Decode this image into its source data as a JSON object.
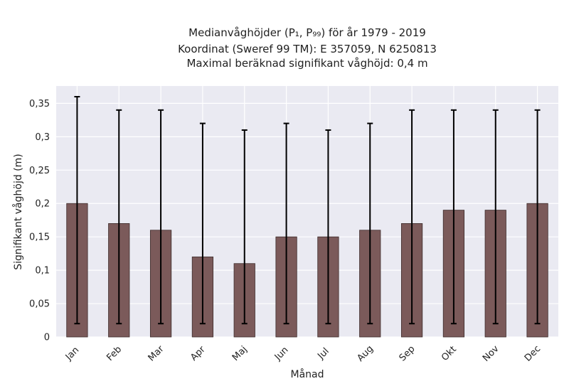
{
  "chart_data": {
    "type": "bar",
    "title_lines": [
      "Medianvåghöjder (P₁, P₉₉) för år 1979 - 2019",
      "Koordinat (Sweref 99 TM): E 357059, N 6250813",
      "Maximal beräknad signifikant våghöjd: 0,4 m"
    ],
    "xlabel": "Månad",
    "ylabel": "Signifikant våghöjd (m)",
    "categories": [
      "Jan",
      "Feb",
      "Mar",
      "Apr",
      "Maj",
      "Jun",
      "Jul",
      "Aug",
      "Sep",
      "Okt",
      "Nov",
      "Dec"
    ],
    "values": [
      0.2,
      0.17,
      0.16,
      0.12,
      0.11,
      0.15,
      0.15,
      0.16,
      0.17,
      0.19,
      0.19,
      0.2
    ],
    "p1": [
      0.02,
      0.02,
      0.02,
      0.02,
      0.02,
      0.02,
      0.02,
      0.02,
      0.02,
      0.02,
      0.02,
      0.02
    ],
    "p99": [
      0.36,
      0.34,
      0.34,
      0.32,
      0.31,
      0.32,
      0.31,
      0.32,
      0.34,
      0.34,
      0.34,
      0.34
    ],
    "ylim": [
      0,
      0.376
    ],
    "yticks": [
      0,
      0.05,
      0.1,
      0.15,
      0.2,
      0.25,
      0.3,
      0.35
    ],
    "ytick_labels": [
      "0",
      "0,05",
      "0,1",
      "0,15",
      "0,2",
      "0,25",
      "0,3",
      "0,35"
    ],
    "grid": true,
    "colors": {
      "bar": "#7b5a5a",
      "bar_edge": "#3d2c2c",
      "error": "#000000",
      "background": "#eaeaf2",
      "grid": "#ffffff"
    }
  }
}
